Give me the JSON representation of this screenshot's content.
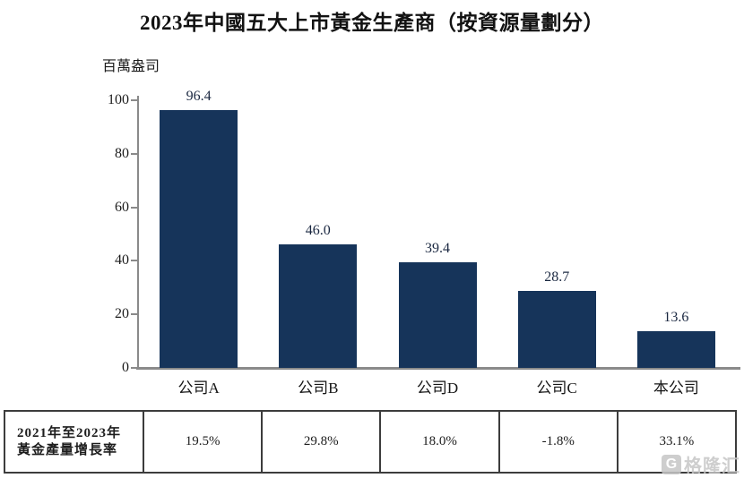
{
  "chart_data": {
    "type": "bar",
    "title": "2023年中國五大上市黃金生產商（按資源量劃分）",
    "unit_label": "百萬盎司",
    "categories": [
      "公司A",
      "公司B",
      "公司D",
      "公司C",
      "本公司"
    ],
    "values": [
      96.4,
      46.0,
      39.4,
      28.7,
      13.6
    ],
    "value_labels": [
      "96.4",
      "46.0",
      "39.4",
      "28.7",
      "13.6"
    ],
    "ylabel": "百萬盎司",
    "ylim": [
      0,
      100
    ],
    "yticks": [
      0,
      20,
      40,
      60,
      80,
      100
    ],
    "grid": false,
    "legend": "none",
    "bar_color": "#16345A"
  },
  "growth_table": {
    "row_header_line1": "2021年至2023年",
    "row_header_line2": "黃金產量增長率",
    "values": [
      "19.5%",
      "29.8%",
      "18.0%",
      "-1.8%",
      "33.1%"
    ]
  },
  "watermark": {
    "logo_letter": "G",
    "text": "格隆汇"
  },
  "colors": {
    "bar": "#16345A",
    "axis": "#8a8a8a",
    "table_border": "#3c3c3c",
    "value_label": "#1a2740",
    "watermark": "#c6c6c6"
  }
}
